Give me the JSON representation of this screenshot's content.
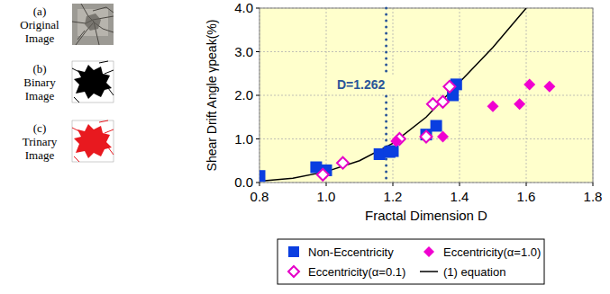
{
  "images": [
    {
      "label": [
        "(a)",
        "Original",
        "Image"
      ]
    },
    {
      "label": [
        "(b)",
        "Binary",
        "Image"
      ]
    },
    {
      "label": [
        "(c)",
        "Trinary",
        "Image"
      ]
    }
  ],
  "chart_data": {
    "type": "scatter",
    "x_label": "Fractal Dimension D",
    "y_label": "Shear Drift Angle γpeak(%)",
    "xlim": [
      0.8,
      1.8
    ],
    "xticks": [
      {
        "value": 0.8,
        "label": "0.8"
      },
      {
        "value": 1,
        "label": "1.0"
      },
      {
        "value": 1.2,
        "label": "1.2"
      },
      {
        "value": 1.4,
        "label": "1.4"
      },
      {
        "value": 1.6,
        "label": "1.6"
      },
      {
        "value": 1.8,
        "label": "1.8"
      }
    ],
    "ylim": [
      0,
      4
    ],
    "yticks": [
      {
        "value": 0,
        "label": "0.0"
      },
      {
        "value": 1,
        "label": "1.0"
      },
      {
        "value": 2,
        "label": "2.0"
      },
      {
        "value": 3,
        "label": "3.0"
      },
      {
        "value": 4,
        "label": "4.0"
      }
    ],
    "grid": true,
    "legend": "bottom",
    "annotations": [
      {
        "text": "D=1.262",
        "x": 1.18
      }
    ],
    "series": [
      {
        "name": "Non-Eccentricity",
        "type": "scatter",
        "marker": "square",
        "color": "#0a3ee0",
        "x": [
          0.8,
          0.97,
          1.0,
          1.16,
          1.19,
          1.2,
          1.3,
          1.33,
          1.38,
          1.39
        ],
        "values": [
          0.15,
          0.35,
          0.28,
          0.65,
          0.7,
          0.72,
          1.1,
          1.3,
          2.0,
          2.25
        ]
      },
      {
        "name": "Eccentricity(α=0.1)",
        "type": "scatter",
        "marker": "open-diamond",
        "color": "#e600c8",
        "x": [
          0.99,
          1.05,
          1.22,
          1.3,
          1.32,
          1.35,
          1.37
        ],
        "values": [
          0.18,
          0.45,
          1.0,
          1.05,
          1.8,
          1.85,
          2.2
        ]
      },
      {
        "name": "Eccentricity(α=1.0)",
        "type": "scatter",
        "marker": "diamond",
        "color": "#f000d0",
        "x": [
          1.21,
          1.35,
          1.5,
          1.58,
          1.61,
          1.67
        ],
        "values": [
          0.95,
          1.05,
          1.75,
          1.8,
          2.25,
          2.2
        ]
      },
      {
        "name": "(1) equation",
        "type": "line",
        "marker": "none",
        "line_style": "solid",
        "color": "#000000",
        "x": [
          0.8,
          0.9,
          1.0,
          1.1,
          1.2,
          1.3,
          1.4,
          1.5,
          1.6
        ],
        "values": [
          0.03,
          0.1,
          0.25,
          0.5,
          0.9,
          1.5,
          2.3,
          3.1,
          4.0
        ]
      }
    ]
  }
}
